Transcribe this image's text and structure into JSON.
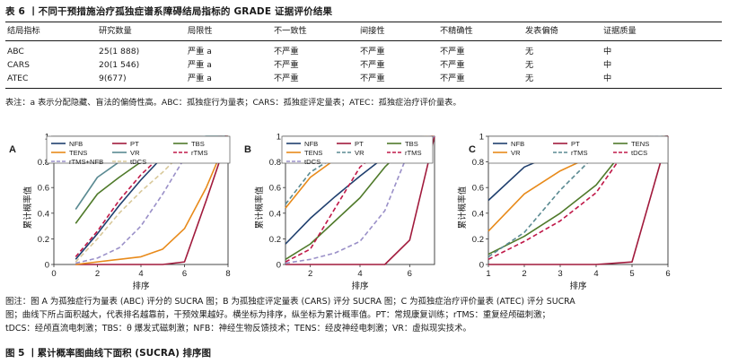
{
  "table": {
    "title": "表 6 丨不同干预措施治疗孤独症谱系障碍结局指标的 GRADE 证据评价结果",
    "headers": [
      "结局指标",
      "研究数量",
      "局限性",
      "不一致性",
      "间接性",
      "不精确性",
      "发表偏倚",
      "证据质量"
    ],
    "rows": [
      [
        "ABC",
        "25(1 888)",
        "严重 a",
        "不严重",
        "不严重",
        "不严重",
        "无",
        "中"
      ],
      [
        "CARS",
        "20(1 546)",
        "严重 a",
        "不严重",
        "不严重",
        "不严重",
        "无",
        "中"
      ],
      [
        "ATEC",
        "9(677)",
        "严重 a",
        "不严重",
        "不严重",
        "不严重",
        "无",
        "中"
      ]
    ],
    "note": "表注：a 表示分配隐藏、盲法的偏倚性高。ABC：孤独症行为量表；CARS：孤独症评定量表；ATEC：孤独症治疗评价量表。"
  },
  "chart_data": [
    {
      "panel": "A",
      "type": "line",
      "xlabel": "排序",
      "ylabel": "累计概率值",
      "xlim": [
        0,
        8
      ],
      "ylim": [
        0,
        1
      ],
      "x_ticks": [
        0,
        2,
        4,
        6,
        8
      ],
      "y_ticks": [
        0,
        0.2,
        0.4,
        0.6,
        0.8,
        1
      ],
      "x": [
        1,
        2,
        3,
        4,
        5,
        6,
        7,
        8
      ],
      "series": [
        {
          "name": "NFB",
          "color": "#1f3f6e",
          "dash": "solid",
          "values": [
            0.04,
            0.24,
            0.46,
            0.66,
            0.84,
            0.95,
            0.99,
            1.0
          ]
        },
        {
          "name": "PT",
          "color": "#a11a3c",
          "dash": "solid",
          "values": [
            0.0,
            0.0,
            0.0,
            0.0,
            0.0,
            0.02,
            0.5,
            1.0
          ]
        },
        {
          "name": "TBS",
          "color": "#4f7a2a",
          "dash": "solid",
          "values": [
            0.32,
            0.55,
            0.68,
            0.8,
            0.89,
            0.96,
            0.99,
            1.0
          ]
        },
        {
          "name": "TENS",
          "color": "#e88a1a",
          "dash": "solid",
          "values": [
            0.0,
            0.02,
            0.04,
            0.06,
            0.12,
            0.28,
            0.6,
            1.0
          ]
        },
        {
          "name": "VR",
          "color": "#5a8a92",
          "dash": "solid",
          "values": [
            0.43,
            0.68,
            0.8,
            0.88,
            0.94,
            0.98,
            1.0,
            1.0
          ]
        },
        {
          "name": "rTMS",
          "color": "#c01848",
          "dash": "dash",
          "values": [
            0.06,
            0.26,
            0.5,
            0.7,
            0.86,
            0.96,
            0.99,
            1.0
          ]
        },
        {
          "name": "rTMS+NFB",
          "color": "#9a90c8",
          "dash": "dash",
          "values": [
            0.01,
            0.05,
            0.13,
            0.3,
            0.55,
            0.83,
            0.97,
            1.0
          ]
        },
        {
          "name": "tDCS",
          "color": "#d8c89a",
          "dash": "dash",
          "values": [
            0.02,
            0.2,
            0.4,
            0.57,
            0.72,
            0.89,
            0.98,
            1.0
          ]
        }
      ]
    },
    {
      "panel": "B",
      "type": "line",
      "xlabel": "排序",
      "ylabel": "累计概率值",
      "xlim": [
        1,
        7
      ],
      "ylim": [
        0,
        1
      ],
      "x_ticks": [
        2,
        4,
        6
      ],
      "y_ticks": [
        0,
        0.2,
        0.4,
        0.6,
        0.8,
        1
      ],
      "x": [
        1,
        2,
        3,
        4,
        5,
        6,
        7
      ],
      "series": [
        {
          "name": "NFB",
          "color": "#1f3f6e",
          "dash": "solid",
          "values": [
            0.16,
            0.36,
            0.53,
            0.69,
            0.84,
            0.96,
            1.0
          ]
        },
        {
          "name": "PT",
          "color": "#a11a3c",
          "dash": "solid",
          "values": [
            0.0,
            0.0,
            0.0,
            0.0,
            0.0,
            0.19,
            1.0
          ]
        },
        {
          "name": "TBS",
          "color": "#4f7a2a",
          "dash": "solid",
          "values": [
            0.04,
            0.16,
            0.34,
            0.52,
            0.76,
            0.95,
            1.0
          ]
        },
        {
          "name": "TENS",
          "color": "#e88a1a",
          "dash": "solid",
          "values": [
            0.44,
            0.68,
            0.82,
            0.89,
            0.95,
            0.99,
            1.0
          ]
        },
        {
          "name": "VR",
          "color": "#5a8a92",
          "dash": "dash",
          "values": [
            0.47,
            0.72,
            0.84,
            0.91,
            0.96,
            0.99,
            1.0
          ]
        },
        {
          "name": "rTMS",
          "color": "#c01848",
          "dash": "dash",
          "values": [
            0.02,
            0.12,
            0.44,
            0.76,
            0.92,
            0.98,
            1.0
          ]
        },
        {
          "name": "tDCS",
          "color": "#9a90c8",
          "dash": "dash",
          "values": [
            0.01,
            0.04,
            0.09,
            0.18,
            0.42,
            0.9,
            1.0
          ]
        }
      ]
    },
    {
      "panel": "C",
      "type": "line",
      "xlabel": "排序",
      "ylabel": "累计概率值",
      "xlim": [
        1,
        6
      ],
      "ylim": [
        0,
        1
      ],
      "x_ticks": [
        1,
        2,
        3,
        4,
        5,
        6
      ],
      "y_ticks": [
        0,
        0.2,
        0.4,
        0.6,
        0.8,
        1
      ],
      "x": [
        1,
        2,
        3,
        4,
        5,
        6
      ],
      "series": [
        {
          "name": "NFB",
          "color": "#1f3f6e",
          "dash": "solid",
          "values": [
            0.5,
            0.76,
            0.88,
            0.95,
            0.99,
            1.0
          ]
        },
        {
          "name": "PT",
          "color": "#a11a3c",
          "dash": "solid",
          "values": [
            0.0,
            0.0,
            0.0,
            0.0,
            0.02,
            1.0
          ]
        },
        {
          "name": "TENS",
          "color": "#4f7a2a",
          "dash": "solid",
          "values": [
            0.08,
            0.22,
            0.4,
            0.62,
            0.97,
            1.0
          ]
        },
        {
          "name": "VR",
          "color": "#e88a1a",
          "dash": "solid",
          "values": [
            0.26,
            0.55,
            0.73,
            0.86,
            0.98,
            1.0
          ]
        },
        {
          "name": "rTMS",
          "color": "#5a8a92",
          "dash": "dash",
          "values": [
            0.06,
            0.25,
            0.58,
            0.86,
            0.99,
            1.0
          ]
        },
        {
          "name": "tDCS",
          "color": "#c01848",
          "dash": "dash",
          "values": [
            0.04,
            0.18,
            0.34,
            0.56,
            0.96,
            1.0
          ]
        }
      ]
    }
  ],
  "caption": {
    "lines": [
      "图注：图 A 为孤独症行为量表 (ABC) 评分的 SUCRA 图；B 为孤独症评定量表 (CARS) 评分 SUCRA 图；C 为孤独症治疗评价量表 (ATEC) 评分 SUCRA",
      "图；曲线下所占面积越大，代表排名越靠前，干预效果越好。横坐标为排序，纵坐标为累计概率值。PT：常规康复训练；rTMS：重复经颅磁刺激；",
      "tDCS：经颅直流电刺激；TBS：θ 爆发式磁刺激；NFB：神经生物反馈技术；TENS：经皮神经电刺激；VR：虚拟现实技术。"
    ],
    "figure_title": "图 5 丨累计概率图曲线下面积 (SUCRA) 排序图"
  }
}
